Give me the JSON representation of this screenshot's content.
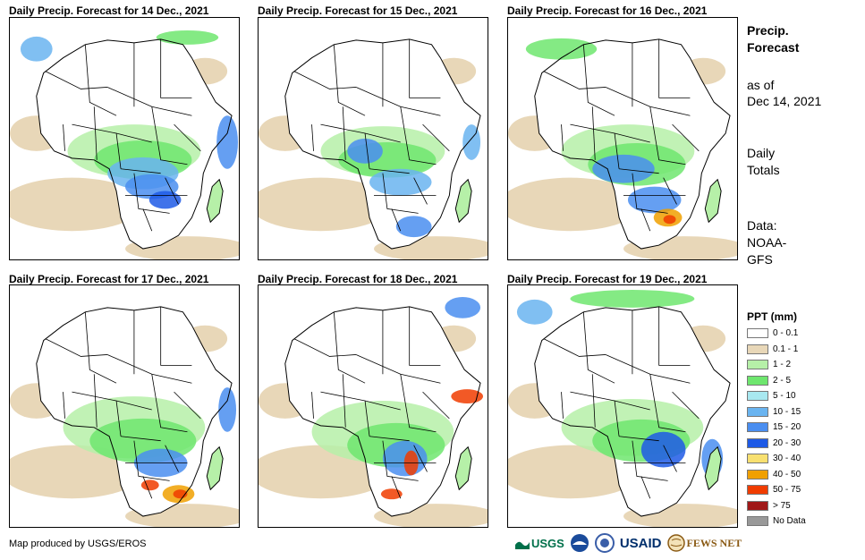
{
  "panels": [
    {
      "title": "Daily Precip. Forecast for 14 Dec., 2021"
    },
    {
      "title": "Daily Precip. Forecast for 15 Dec., 2021"
    },
    {
      "title": "Daily Precip. Forecast for 16 Dec., 2021"
    },
    {
      "title": "Daily Precip. Forecast for 17 Dec., 2021"
    },
    {
      "title": "Daily Precip. Forecast for 18 Dec., 2021"
    },
    {
      "title": "Daily Precip. Forecast for 19 Dec., 2021"
    }
  ],
  "sidebar": {
    "title_line1": "Precip.",
    "title_line2": "Forecast",
    "asof_line1": "as of",
    "asof_line2": "Dec 14, 2021",
    "totals_line1": "Daily",
    "totals_line2": "Totals",
    "data_line1": "Data:",
    "data_line2": "NOAA-",
    "data_line3": "GFS"
  },
  "legend": {
    "title": "PPT (mm)",
    "items": [
      {
        "label": "0 - 0.1",
        "color": "#ffffff"
      },
      {
        "label": "0.1 - 1",
        "color": "#e8d7b8"
      },
      {
        "label": "1 - 2",
        "color": "#b6f0a8"
      },
      {
        "label": "2 - 5",
        "color": "#6ee66e"
      },
      {
        "label": "5 - 10",
        "color": "#a8e8f0"
      },
      {
        "label": "10 - 15",
        "color": "#6ab4f0"
      },
      {
        "label": "15 - 20",
        "color": "#4a8ef0"
      },
      {
        "label": "20 - 30",
        "color": "#1e5ae6"
      },
      {
        "label": "30 - 40",
        "color": "#f8e070"
      },
      {
        "label": "40 - 50",
        "color": "#f0a000"
      },
      {
        "label": "50 - 75",
        "color": "#f03c00"
      },
      {
        "label": "> 75",
        "color": "#a01818"
      },
      {
        "label": "No Data",
        "color": "#999999"
      }
    ]
  },
  "footer": {
    "credit": "Map produced by USGS/EROS",
    "logos": [
      "USGS",
      "USAID",
      "FEWS NET"
    ]
  }
}
